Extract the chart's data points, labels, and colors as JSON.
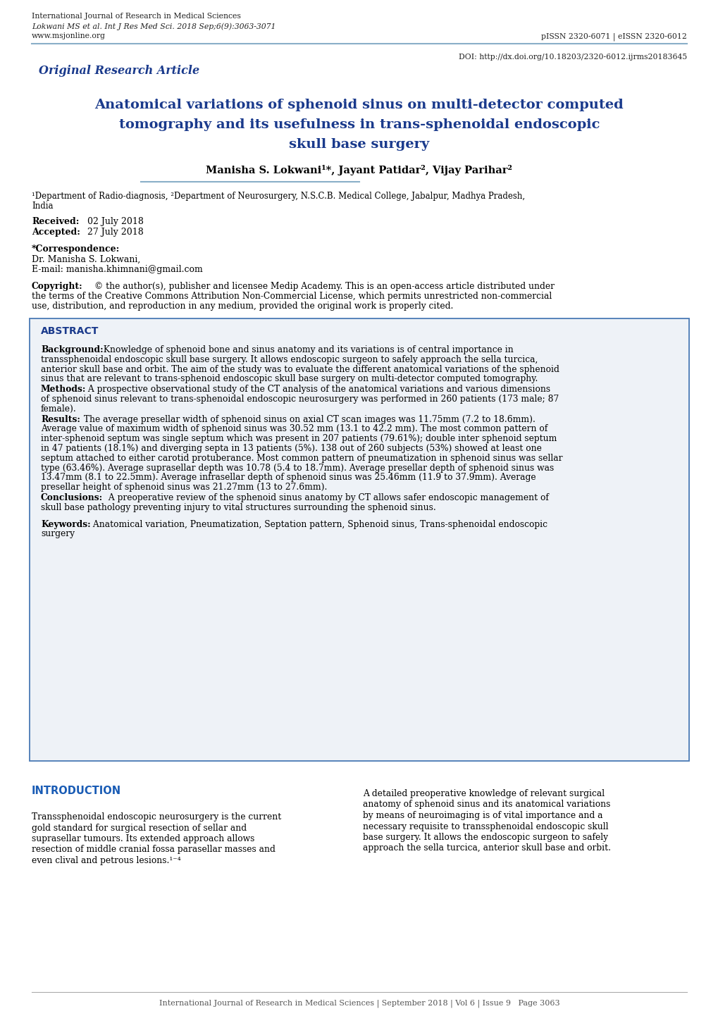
{
  "page_width": 10.2,
  "page_height": 14.42,
  "bg_color": "#ffffff",
  "header_line_color": "#8aafc8",
  "blue_heading_color": "#1a3a8c",
  "abstract_border_color": "#4a7ab5",
  "abstract_bg_color": "#eef2f7",
  "intro_heading_color": "#1a5cb5",
  "text_color": "#000000",
  "header_journal": "International Journal of Research in Medical Sciences",
  "header_citation": "Lokwani MS et al. Int J Res Med Sci. 2018 Sep;6(9):3063-3071",
  "header_website": "www.msjonline.org",
  "header_issn": "pISSN 2320-6071 | eISSN 2320-6012",
  "doi": "DOI: http://dx.doi.org/10.18203/2320-6012.ijrms20183645",
  "original_article": "Original Research Article",
  "main_title_line1": "Anatomical variations of sphenoid sinus on multi-detector computed",
  "main_title_line2": "tomography and its usefulness in trans-sphenoidal endoscopic",
  "main_title_line3": "skull base surgery",
  "authors": "Manisha S. Lokwani¹*, Jayant Patidar², Vijay Parihar²",
  "aff_line1": "¹Department of Radio-diagnosis, ²Department of Neurosurgery, N.S.C.B. Medical College, Jabalpur, Madhya Pradesh,",
  "aff_line2": "India",
  "received_label": "Received:",
  "received_val": " 02 July 2018",
  "accepted_label": "Accepted:",
  "accepted_val": " 27 July 2018",
  "corr_label": "*Correspondence:",
  "corr_name": "Dr. Manisha S. Lokwani,",
  "corr_email": "E-mail: manisha.khimnani@gmail.com",
  "copy_label": "Copyright:",
  "copy_text": " © the author(s), publisher and licensee Medip Academy. This is an open-access article distributed under",
  "copy_line2": "the terms of the Creative Commons Attribution Non-Commercial License, which permits unrestricted non-commercial",
  "copy_line3": "use, distribution, and reproduction in any medium, provided the original work is properly cited.",
  "abstract_heading": "ABSTRACT",
  "bg_label": "Background:",
  "bg_l1": " Knowledge of sphenoid bone and sinus anatomy and its variations is of central importance in",
  "bg_l2": "transsphenoidal endoscopic skull base surgery. It allows endoscopic surgeon to safely approach the sella turcica,",
  "bg_l3": "anterior skull base and orbit. The aim of the study was to evaluate the different anatomical variations of the sphenoid",
  "bg_l4": "sinus that are relevant to trans-sphenoid endoscopic skull base surgery on multi-detector computed tomography.",
  "me_label": "Methods:",
  "me_l1": " A prospective observational study of the CT analysis of the anatomical variations and various dimensions",
  "me_l2": "of sphenoid sinus relevant to trans-sphenoidal endoscopic neurosurgery was performed in 260 patients (173 male; 87",
  "me_l3": "female).",
  "re_label": "Results:",
  "re_l1": " The average presellar width of sphenoid sinus on axial CT scan images was 11.75mm (7.2 to 18.6mm).",
  "re_l2": "Average value of maximum width of sphenoid sinus was 30.52 mm (13.1 to 42.2 mm). The most common pattern of",
  "re_l3": "inter-sphenoid septum was single septum which was present in 207 patients (79.61%); double inter sphenoid septum",
  "re_l4": "in 47 patients (18.1%) and diverging septa in 13 patients (5%). 138 out of 260 subjects (53%) showed at least one",
  "re_l5": "septum attached to either carotid protuberance. Most common pattern of pneumatization in sphenoid sinus was sellar",
  "re_l6": "type (63.46%). Average suprasellar depth was 10.78 (5.4 to 18.7mm). Average presellar depth of sphenoid sinus was",
  "re_l7": "13.47mm (8.1 to 22.5mm). Average infrasellar depth of sphenoid sinus was 25.46mm (11.9 to 37.9mm). Average",
  "re_l8": "presellar height of sphenoid sinus was 21.27mm (13 to 27.6mm).",
  "co_label": "Conclusions:",
  "co_l1": " A preoperative review of the sphenoid sinus anatomy by CT allows safer endoscopic management of",
  "co_l2": "skull base pathology preventing injury to vital structures surrounding the sphenoid sinus.",
  "kw_label": "Keywords:",
  "kw_l1": " Anatomical variation, Pneumatization, Septation pattern, Sphenoid sinus, Trans-sphenoidal endoscopic",
  "kw_l2": "surgery",
  "intro_heading": "INTRODUCTION",
  "il_l1": "Transsphenoidal endoscopic neurosurgery is the current",
  "il_l2": "gold standard for surgical resection of sellar and",
  "il_l3": "suprasellar tumours. Its extended approach allows",
  "il_l4": "resection of middle cranial fossa parasellar masses and",
  "il_l5": "even clival and petrous lesions.¹⁻⁴",
  "ir_l1": "A detailed preoperative knowledge of relevant surgical",
  "ir_l2": "anatomy of sphenoid sinus and its anatomical variations",
  "ir_l3": "by means of neuroimaging is of vital importance and a",
  "ir_l4": "necessary requisite to transsphenoidal endoscopic skull",
  "ir_l5": "base surgery. It allows the endoscopic surgeon to safely",
  "ir_l6": "approach the sella turcica, anterior skull base and orbit.",
  "footer_text": "International Journal of Research in Medical Sciences | September 2018 | Vol 6 | Issue 9   Page 3063"
}
